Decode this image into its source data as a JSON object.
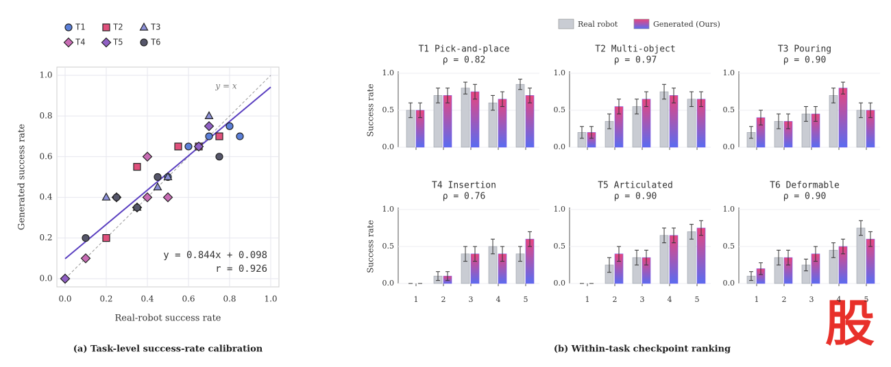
{
  "legend": [
    {
      "name": "Real robot",
      "color": "#c9ccd3"
    },
    {
      "name": "Generated (Ours)",
      "color": "#7a5ce8"
    }
  ],
  "captions": [
    "(a) Task-level success-rate calibration",
    "(b) Within-task checkpoint ranking"
  ],
  "watermark": "股",
  "chart_data": [
    {
      "type": "scatter",
      "xlabel": "Real-robot success rate",
      "ylabel": "Generated success rate",
      "xlim": [
        0,
        1
      ],
      "ylim": [
        0,
        1
      ],
      "xticks": [
        {
          "value": 0,
          "label": "0.0"
        },
        {
          "value": 0.2,
          "label": "0.2"
        },
        {
          "value": 0.4,
          "label": "0.4"
        },
        {
          "value": 0.6,
          "label": "0.6"
        },
        {
          "value": 0.8,
          "label": "0.8"
        },
        {
          "value": 1,
          "label": "1.0"
        }
      ],
      "yticks": [
        {
          "value": 0,
          "label": "0.0"
        },
        {
          "value": 0.2,
          "label": "0.2"
        },
        {
          "value": 0.4,
          "label": "0.4"
        },
        {
          "value": 0.6,
          "label": "0.6"
        },
        {
          "value": 0.8,
          "label": "0.8"
        },
        {
          "value": 1,
          "label": "1.0"
        }
      ],
      "grid": true,
      "identity_label": "y = x",
      "fit": {
        "slope": 0.844,
        "intercept": 0.098,
        "color": "#5a3fc0"
      },
      "fit_label": "y = 0.844x + 0.098",
      "r_label": "r = 0.926",
      "series": [
        {
          "name": "T1",
          "color": "#5b7fd8",
          "marker": "circle",
          "x": [
            0.5,
            0.7,
            0.8,
            0.6,
            0.85
          ],
          "y": [
            0.5,
            0.7,
            0.75,
            0.65,
            0.7
          ]
        },
        {
          "name": "T2",
          "color": "#e0507c",
          "marker": "square",
          "x": [
            0.2,
            0.35,
            0.55,
            0.75,
            0.65
          ],
          "y": [
            0.2,
            0.55,
            0.65,
            0.7,
            0.65
          ]
        },
        {
          "name": "T3",
          "color": "#8c90d8",
          "marker": "triangle",
          "x": [
            0.2,
            0.35,
            0.45,
            0.7,
            0.5
          ],
          "y": [
            0.4,
            0.35,
            0.45,
            0.8,
            0.5
          ]
        },
        {
          "name": "T4",
          "color": "#c86cb4",
          "marker": "diamond",
          "x": [
            0,
            0.1,
            0.4,
            0.5,
            0.4
          ],
          "y": [
            0,
            0.1,
            0.4,
            0.4,
            0.6
          ]
        },
        {
          "name": "T5",
          "color": "#9060c4",
          "marker": "diamond",
          "x": [
            0,
            0.25,
            0.35,
            0.65,
            0.7
          ],
          "y": [
            0,
            0.4,
            0.35,
            0.65,
            0.75
          ]
        },
        {
          "name": "T6",
          "color": "#55566a",
          "marker": "circle",
          "x": [
            0.1,
            0.35,
            0.25,
            0.45,
            0.75
          ],
          "y": [
            0.2,
            0.35,
            0.4,
            0.5,
            0.6
          ]
        }
      ]
    },
    {
      "type": "bar",
      "title": "T1  Pick-and-place",
      "subtitle": "ρ = 0.82",
      "ylabel": "Success rate",
      "categories": [
        null,
        null,
        null,
        null,
        null
      ],
      "ylim": [
        0,
        1
      ],
      "yticks": [
        {
          "value": 0,
          "label": "0.0"
        },
        {
          "value": 0.5,
          "label": "0.5"
        },
        {
          "value": 1,
          "label": "1.0"
        }
      ],
      "series": [
        {
          "values": [
            0.5,
            0.7,
            0.8,
            0.6,
            0.85
          ],
          "errors": [
            0.1,
            0.1,
            0.08,
            0.1,
            0.07
          ]
        },
        {
          "values": [
            0.5,
            0.7,
            0.75,
            0.65,
            0.7
          ],
          "errors": [
            0.1,
            0.1,
            0.1,
            0.1,
            0.1
          ]
        }
      ]
    },
    {
      "type": "bar",
      "title": "T2  Multi-object",
      "subtitle": "ρ = 0.97",
      "categories": [
        null,
        null,
        null,
        null,
        null
      ],
      "ylim": [
        0,
        1
      ],
      "yticks": [
        {
          "value": 0,
          "label": "0.0"
        },
        {
          "value": 0.5,
          "label": "0.5"
        },
        {
          "value": 1,
          "label": "1.0"
        }
      ],
      "series": [
        {
          "values": [
            0.2,
            0.35,
            0.55,
            0.75,
            0.65
          ],
          "errors": [
            0.08,
            0.1,
            0.1,
            0.1,
            0.1
          ]
        },
        {
          "values": [
            0.2,
            0.55,
            0.65,
            0.7,
            0.65
          ],
          "errors": [
            0.08,
            0.1,
            0.1,
            0.1,
            0.1
          ]
        }
      ]
    },
    {
      "type": "bar",
      "title": "T3  Pouring",
      "subtitle": "ρ = 0.90",
      "categories": [
        null,
        null,
        null,
        null,
        null
      ],
      "ylim": [
        0,
        1
      ],
      "yticks": [
        {
          "value": 0,
          "label": "0.0"
        },
        {
          "value": 0.5,
          "label": "0.5"
        },
        {
          "value": 1,
          "label": "1.0"
        }
      ],
      "series": [
        {
          "values": [
            0.2,
            0.35,
            0.45,
            0.7,
            0.5
          ],
          "errors": [
            0.08,
            0.1,
            0.1,
            0.1,
            0.1
          ]
        },
        {
          "values": [
            0.4,
            0.35,
            0.45,
            0.8,
            0.5
          ],
          "errors": [
            0.1,
            0.1,
            0.1,
            0.08,
            0.1
          ]
        }
      ]
    },
    {
      "type": "bar",
      "title": "T4  Insertion",
      "subtitle": "ρ = 0.76",
      "ylabel": "Success rate",
      "categories": [
        "1",
        "2",
        "3",
        "4",
        "5"
      ],
      "ylim": [
        0,
        1
      ],
      "yticks": [
        {
          "value": 0,
          "label": "0.0"
        },
        {
          "value": 0.5,
          "label": "0.5"
        },
        {
          "value": 1,
          "label": "1.0"
        }
      ],
      "series": [
        {
          "values": [
            0,
            0.1,
            0.4,
            0.5,
            0.4
          ],
          "errors": [
            0,
            0.06,
            0.1,
            0.1,
            0.1
          ]
        },
        {
          "values": [
            0,
            0.1,
            0.4,
            0.4,
            0.6
          ],
          "errors": [
            0,
            0.06,
            0.1,
            0.1,
            0.1
          ]
        }
      ]
    },
    {
      "type": "bar",
      "title": "T5  Articulated",
      "subtitle": "ρ = 0.90",
      "categories": [
        "1",
        "2",
        "3",
        "4",
        "5"
      ],
      "ylim": [
        0,
        1
      ],
      "yticks": [
        {
          "value": 0,
          "label": "0.0"
        },
        {
          "value": 0.5,
          "label": "0.5"
        },
        {
          "value": 1,
          "label": "1.0"
        }
      ],
      "series": [
        {
          "values": [
            0,
            0.25,
            0.35,
            0.65,
            0.7
          ],
          "errors": [
            0,
            0.1,
            0.1,
            0.1,
            0.1
          ]
        },
        {
          "values": [
            0,
            0.4,
            0.35,
            0.65,
            0.75
          ],
          "errors": [
            0,
            0.1,
            0.1,
            0.1,
            0.1
          ]
        }
      ]
    },
    {
      "type": "bar",
      "title": "T6  Deformable",
      "subtitle": "ρ = 0.90",
      "categories": [
        "1",
        "2",
        "3",
        "4",
        "5"
      ],
      "ylim": [
        0,
        1
      ],
      "yticks": [
        {
          "value": 0,
          "label": "0.0"
        },
        {
          "value": 0.5,
          "label": "0.5"
        },
        {
          "value": 1,
          "label": "1.0"
        }
      ],
      "series": [
        {
          "values": [
            0.1,
            0.35,
            0.25,
            0.45,
            0.75
          ],
          "errors": [
            0.06,
            0.1,
            0.08,
            0.1,
            0.1
          ]
        },
        {
          "values": [
            0.2,
            0.35,
            0.4,
            0.5,
            0.6
          ],
          "errors": [
            0.08,
            0.1,
            0.1,
            0.1,
            0.1
          ]
        }
      ]
    }
  ]
}
